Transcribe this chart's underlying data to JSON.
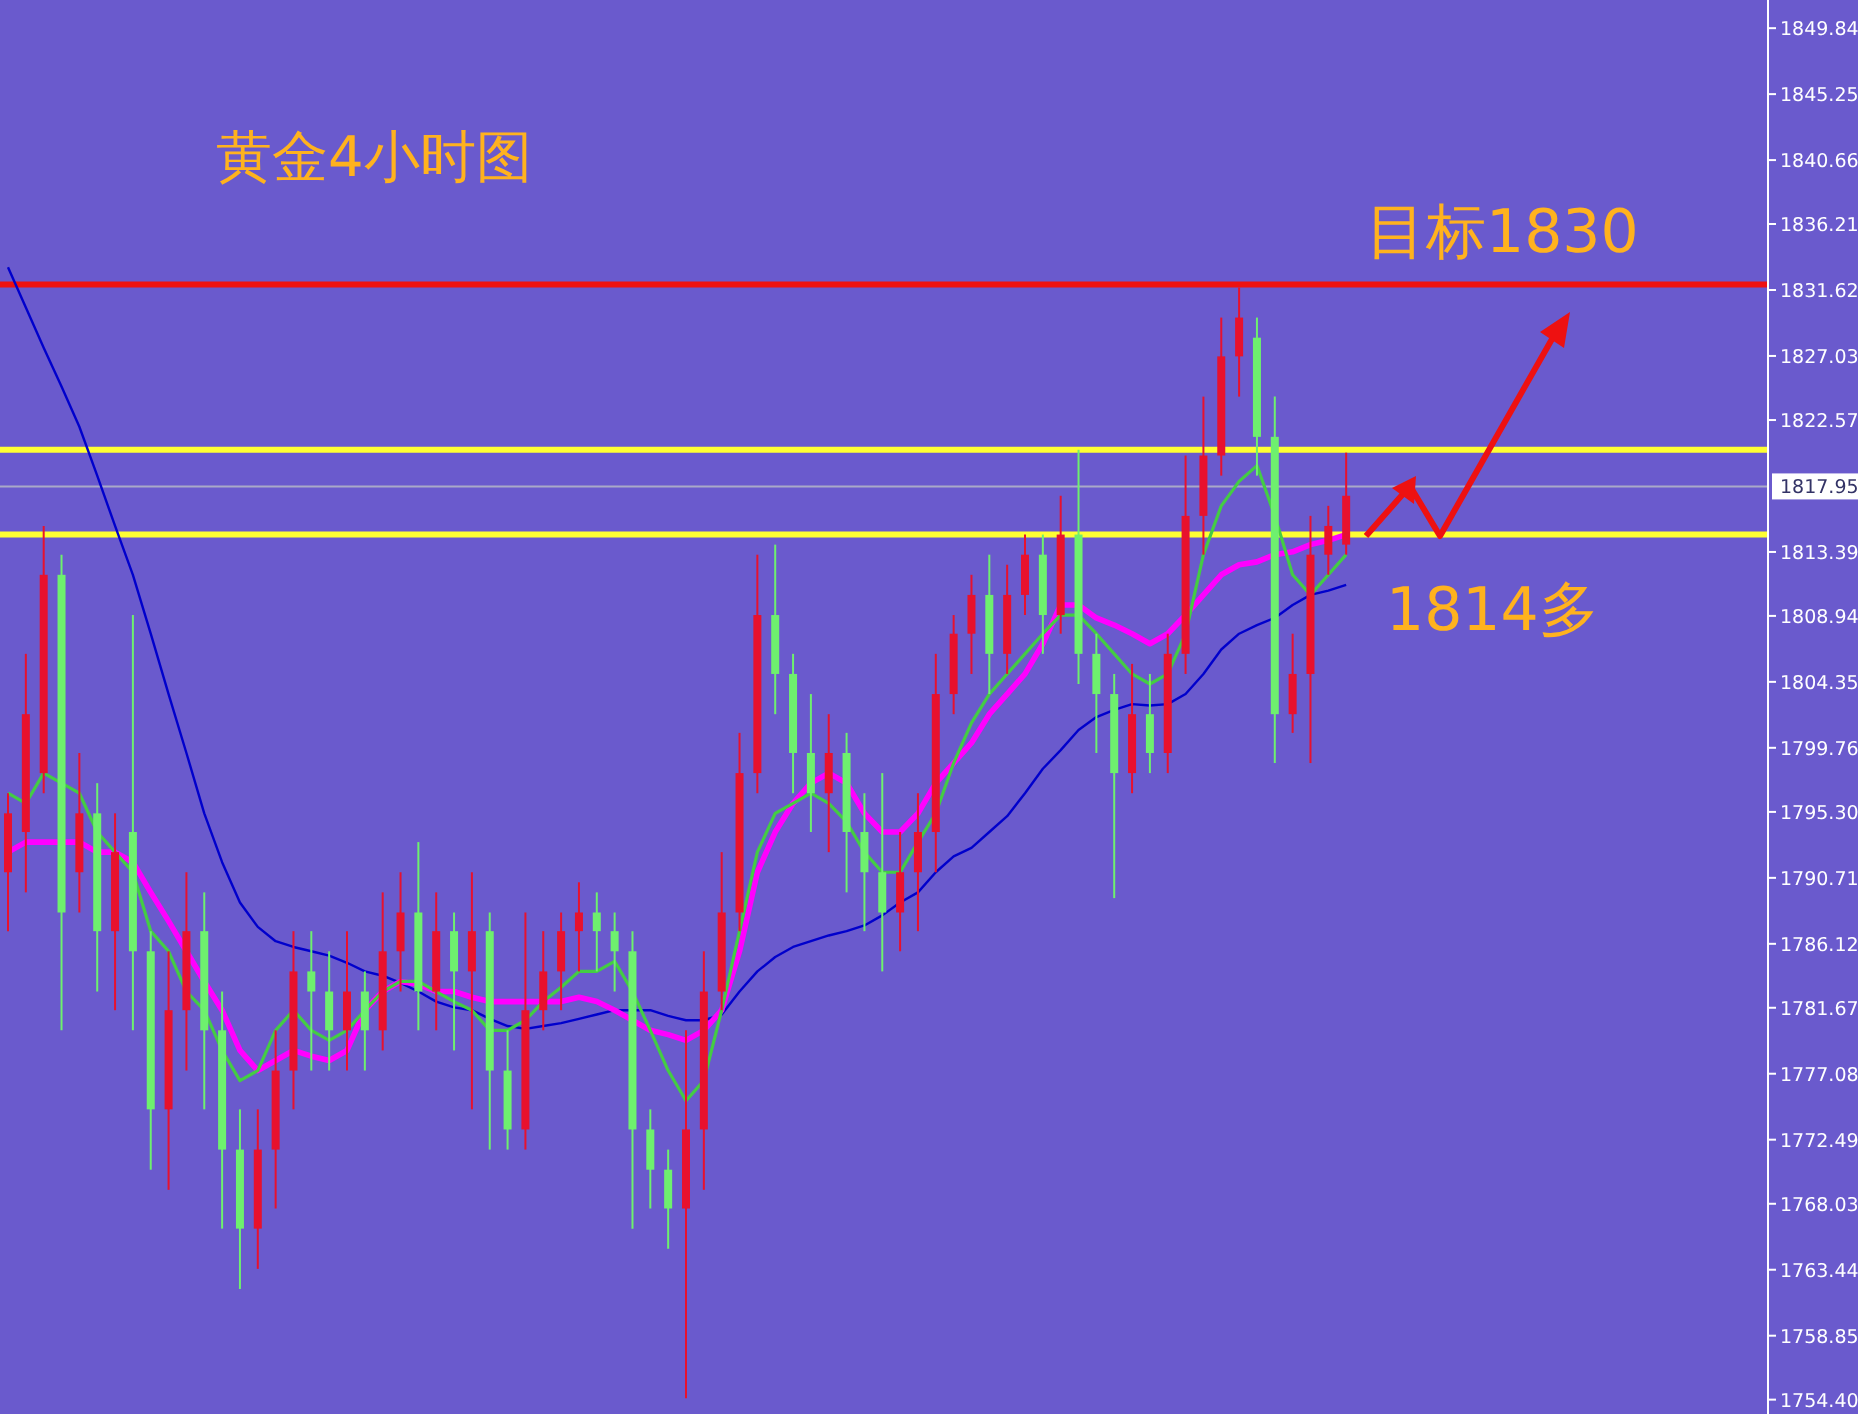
{
  "chart_data": {
    "type": "candlestick",
    "title": "黄金4小时图",
    "categories": [
      null,
      null,
      null,
      null,
      null,
      null,
      null,
      null,
      null,
      null,
      null,
      null,
      null,
      null,
      null,
      null,
      null,
      null,
      null,
      null,
      null,
      null,
      null,
      null,
      null,
      null,
      null,
      null,
      null,
      null,
      null,
      null,
      null,
      null,
      null,
      null,
      null,
      null,
      null,
      null,
      null,
      null,
      null,
      null,
      null,
      null,
      null,
      null,
      null,
      null,
      null,
      null,
      null,
      null,
      null,
      null,
      null,
      null,
      null,
      null,
      null,
      null,
      null,
      null,
      null,
      null,
      null,
      null,
      null,
      null,
      null,
      null,
      null,
      null,
      null,
      null
    ],
    "ohlc": [
      [
        1791.1,
        1796.6,
        1787.0,
        1795.2
      ],
      [
        1793.9,
        1806.3,
        1789.7,
        1802.1
      ],
      [
        1798.0,
        1815.2,
        1796.6,
        1811.8
      ],
      [
        1811.8,
        1813.2,
        1780.1,
        1788.3
      ],
      [
        1791.1,
        1799.4,
        1788.3,
        1795.2
      ],
      [
        1795.2,
        1797.3,
        1782.8,
        1787.0
      ],
      [
        1787.0,
        1795.2,
        1781.5,
        1792.5
      ],
      [
        1793.9,
        1809.0,
        1780.1,
        1785.6
      ],
      [
        1785.6,
        1787.0,
        1770.4,
        1774.6
      ],
      [
        1774.6,
        1785.6,
        1769.0,
        1781.5
      ],
      [
        1781.5,
        1791.1,
        1777.3,
        1787.0
      ],
      [
        1787.0,
        1789.7,
        1774.6,
        1780.1
      ],
      [
        1780.1,
        1782.8,
        1766.3,
        1771.8
      ],
      [
        1771.8,
        1774.6,
        1762.1,
        1766.3
      ],
      [
        1766.3,
        1774.6,
        1763.5,
        1771.8
      ],
      [
        1771.8,
        1780.1,
        1767.7,
        1777.3
      ],
      [
        1777.3,
        1787.0,
        1774.6,
        1784.2
      ],
      [
        1784.2,
        1787.0,
        1777.3,
        1782.8
      ],
      [
        1782.8,
        1785.6,
        1777.3,
        1780.1
      ],
      [
        1780.1,
        1787.0,
        1777.3,
        1782.8
      ],
      [
        1782.8,
        1784.2,
        1777.3,
        1780.1
      ],
      [
        1780.1,
        1789.7,
        1778.7,
        1785.6
      ],
      [
        1785.6,
        1791.1,
        1782.8,
        1788.3
      ],
      [
        1788.3,
        1793.2,
        1780.1,
        1782.8
      ],
      [
        1782.8,
        1789.7,
        1780.1,
        1787.0
      ],
      [
        1787.0,
        1788.3,
        1778.7,
        1784.2
      ],
      [
        1784.2,
        1791.1,
        1774.6,
        1787.0
      ],
      [
        1787.0,
        1788.3,
        1771.8,
        1777.3
      ],
      [
        1777.3,
        1780.1,
        1771.8,
        1773.2
      ],
      [
        1773.2,
        1788.3,
        1771.8,
        1781.5
      ],
      [
        1781.5,
        1787.0,
        1780.1,
        1784.2
      ],
      [
        1784.2,
        1788.3,
        1781.5,
        1787.0
      ],
      [
        1787.0,
        1790.4,
        1784.2,
        1788.3
      ],
      [
        1788.3,
        1789.7,
        1784.2,
        1787.0
      ],
      [
        1787.0,
        1788.3,
        1782.8,
        1785.6
      ],
      [
        1785.6,
        1787.0,
        1766.3,
        1773.2
      ],
      [
        1773.2,
        1774.6,
        1767.7,
        1770.4
      ],
      [
        1770.4,
        1771.8,
        1764.9,
        1767.7
      ],
      [
        1767.7,
        1780.1,
        1754.5,
        1773.2
      ],
      [
        1773.2,
        1785.6,
        1769.0,
        1782.8
      ],
      [
        1782.8,
        1792.5,
        1781.5,
        1788.3
      ],
      [
        1788.3,
        1800.8,
        1787.0,
        1798.0
      ],
      [
        1798.0,
        1813.2,
        1796.6,
        1809.0
      ],
      [
        1809.0,
        1813.9,
        1802.1,
        1804.9
      ],
      [
        1804.9,
        1806.3,
        1796.6,
        1799.4
      ],
      [
        1799.4,
        1803.5,
        1793.9,
        1796.6
      ],
      [
        1796.6,
        1802.1,
        1792.5,
        1799.4
      ],
      [
        1799.4,
        1800.8,
        1789.7,
        1793.9
      ],
      [
        1793.9,
        1796.6,
        1787.0,
        1791.1
      ],
      [
        1791.1,
        1798.0,
        1784.2,
        1788.3
      ],
      [
        1788.3,
        1793.9,
        1785.6,
        1791.1
      ],
      [
        1791.1,
        1796.6,
        1787.0,
        1793.9
      ],
      [
        1793.9,
        1806.3,
        1791.1,
        1803.5
      ],
      [
        1803.5,
        1809.0,
        1802.1,
        1807.7
      ],
      [
        1807.7,
        1811.8,
        1804.9,
        1810.4
      ],
      [
        1810.4,
        1813.2,
        1803.5,
        1806.3
      ],
      [
        1806.3,
        1812.5,
        1804.9,
        1810.4
      ],
      [
        1810.4,
        1814.6,
        1809.0,
        1813.2
      ],
      [
        1813.2,
        1814.6,
        1806.3,
        1809.0
      ],
      [
        1809.0,
        1817.3,
        1807.7,
        1814.6
      ],
      [
        1814.6,
        1820.5,
        1804.2,
        1806.3
      ],
      [
        1806.3,
        1807.7,
        1799.4,
        1803.5
      ],
      [
        1803.5,
        1804.9,
        1789.3,
        1798.0
      ],
      [
        1798.0,
        1805.6,
        1796.6,
        1802.1
      ],
      [
        1802.1,
        1804.9,
        1798.0,
        1799.4
      ],
      [
        1799.4,
        1807.7,
        1798.0,
        1806.3
      ],
      [
        1806.3,
        1820.1,
        1804.9,
        1815.9
      ],
      [
        1815.9,
        1824.2,
        1813.2,
        1820.1
      ],
      [
        1820.1,
        1829.7,
        1818.7,
        1827.0
      ],
      [
        1827.0,
        1831.8,
        1824.2,
        1829.7
      ],
      [
        1828.3,
        1829.7,
        1818.7,
        1821.4
      ],
      [
        1821.4,
        1824.2,
        1798.7,
        1802.1
      ],
      [
        1802.1,
        1807.7,
        1800.8,
        1804.9
      ],
      [
        1804.9,
        1815.9,
        1798.7,
        1813.2
      ],
      [
        1813.2,
        1816.6,
        1811.8,
        1815.2
      ],
      [
        1813.9,
        1820.3,
        1813.2,
        1817.3
      ]
    ],
    "colors": [
      "#e8112d",
      "#e8112d",
      "#e8112d",
      "#6ef06e",
      "#e8112d",
      "#6ef06e",
      "#e8112d",
      "#6ef06e",
      "#6ef06e",
      "#e8112d",
      "#e8112d",
      "#6ef06e",
      "#6ef06e",
      "#6ef06e",
      "#e8112d",
      "#e8112d",
      "#e8112d",
      "#6ef06e",
      "#6ef06e",
      "#e8112d",
      "#6ef06e",
      "#e8112d",
      "#e8112d",
      "#6ef06e",
      "#e8112d",
      "#6ef06e",
      "#e8112d",
      "#6ef06e",
      "#6ef06e",
      "#e8112d",
      "#e8112d",
      "#e8112d",
      "#e8112d",
      "#6ef06e",
      "#6ef06e",
      "#6ef06e",
      "#6ef06e",
      "#6ef06e",
      "#e8112d",
      "#e8112d",
      "#e8112d",
      "#e8112d",
      "#e8112d",
      "#6ef06e",
      "#6ef06e",
      "#6ef06e",
      "#e8112d",
      "#6ef06e",
      "#6ef06e",
      "#6ef06e",
      "#e8112d",
      "#e8112d",
      "#e8112d",
      "#e8112d",
      "#e8112d",
      "#6ef06e",
      "#e8112d",
      "#e8112d",
      "#6ef06e",
      "#e8112d",
      "#6ef06e",
      "#6ef06e",
      "#6ef06e",
      "#e8112d",
      "#6ef06e",
      "#e8112d",
      "#e8112d",
      "#e8112d",
      "#e8112d",
      "#e8112d",
      "#6ef06e",
      "#6ef06e",
      "#e8112d",
      "#e8112d",
      "#e8112d",
      "#e8112d"
    ],
    "series": [
      {
        "type": "line",
        "color": "#0000cc",
        "values": [
          1833.2,
          1830.4,
          1827.6,
          1824.9,
          1822.1,
          1818.7,
          1815.2,
          1811.8,
          1807.7,
          1803.5,
          1799.4,
          1795.2,
          1791.8,
          1789.0,
          1787.3,
          1786.3,
          1785.9,
          1785.6,
          1785.3,
          1784.8,
          1784.2,
          1783.9,
          1783.4,
          1782.8,
          1782.1,
          1781.7,
          1781.5,
          1780.9,
          1780.4,
          1780.2,
          1780.4,
          1780.6,
          1780.9,
          1781.2,
          1781.5,
          1781.5,
          1781.5,
          1781.1,
          1780.8,
          1780.8,
          1781.2,
          1782.8,
          1784.2,
          1785.2,
          1785.9,
          1786.3,
          1786.7,
          1787.0,
          1787.4,
          1788.1,
          1789.0,
          1789.7,
          1791.1,
          1792.2,
          1792.8,
          1793.9,
          1795.0,
          1796.6,
          1798.3,
          1799.6,
          1801.0,
          1801.9,
          1802.4,
          1802.8,
          1802.7,
          1802.8,
          1803.5,
          1804.9,
          1806.6,
          1807.7,
          1808.3,
          1808.8,
          1809.7,
          1810.4,
          1810.7,
          1811.1
        ]
      },
      {
        "type": "line",
        "color": "#ff00ff",
        "values": [
          1792.5,
          1793.2,
          1793.2,
          1793.2,
          1793.2,
          1792.5,
          1792.5,
          1791.8,
          1789.7,
          1787.7,
          1785.6,
          1783.5,
          1781.5,
          1778.7,
          1777.3,
          1778.0,
          1778.7,
          1778.3,
          1778.0,
          1778.7,
          1781.5,
          1782.8,
          1783.5,
          1783.3,
          1782.8,
          1782.8,
          1782.4,
          1782.1,
          1782.1,
          1782.1,
          1782.1,
          1782.1,
          1782.4,
          1782.1,
          1781.5,
          1780.8,
          1780.1,
          1779.8,
          1779.4,
          1780.1,
          1781.5,
          1785.6,
          1791.1,
          1793.9,
          1795.9,
          1797.3,
          1798.0,
          1797.3,
          1795.2,
          1793.9,
          1793.9,
          1795.2,
          1797.3,
          1798.7,
          1800.1,
          1802.1,
          1803.5,
          1804.9,
          1807.0,
          1809.7,
          1809.7,
          1808.8,
          1808.3,
          1807.7,
          1807.0,
          1807.7,
          1809.0,
          1810.4,
          1811.8,
          1812.5,
          1812.7,
          1813.2,
          1813.4,
          1813.9,
          1814.2,
          1814.6
        ]
      },
      {
        "type": "line",
        "color": "#44cc44",
        "values": [
          1796.6,
          1795.9,
          1798.0,
          1797.3,
          1796.6,
          1793.9,
          1792.5,
          1791.1,
          1787.0,
          1785.6,
          1782.8,
          1781.5,
          1778.7,
          1776.6,
          1777.3,
          1780.1,
          1781.5,
          1780.1,
          1779.4,
          1780.1,
          1781.5,
          1782.8,
          1783.5,
          1783.5,
          1782.8,
          1782.1,
          1781.5,
          1780.1,
          1780.1,
          1780.8,
          1782.1,
          1783.1,
          1784.2,
          1784.2,
          1784.9,
          1782.8,
          1780.1,
          1777.3,
          1775.2,
          1776.6,
          1781.5,
          1787.0,
          1792.5,
          1795.2,
          1795.9,
          1796.6,
          1795.9,
          1794.6,
          1792.5,
          1791.1,
          1791.1,
          1793.2,
          1795.2,
          1798.7,
          1801.5,
          1803.5,
          1804.9,
          1806.3,
          1807.7,
          1809.0,
          1809.0,
          1807.7,
          1806.3,
          1804.9,
          1804.2,
          1804.9,
          1807.7,
          1813.2,
          1816.6,
          1818.3,
          1819.4,
          1815.9,
          1811.8,
          1810.4,
          1811.8,
          1813.2
        ]
      }
    ],
    "ylim": [
      1753.4,
      1851.8
    ],
    "yticks": [
      1849.84,
      1845.25,
      1840.66,
      1836.21,
      1831.62,
      1827.03,
      1822.57,
      1813.39,
      1808.94,
      1804.35,
      1799.76,
      {
        "value": 1795.3,
        "label": "1795.30"
      },
      1790.71,
      1786.12,
      1781.67,
      1777.08,
      1772.49,
      1768.03,
      1763.44,
      1758.85,
      {
        "value": 1754.4,
        "label": "1754.40"
      }
    ],
    "tick_labels": "y",
    "ref_lines": [
      {
        "axis": "y",
        "value": 1832.0,
        "color": "#ee1111"
      },
      {
        "axis": "y",
        "value": 1820.5,
        "color": "#ffff33"
      },
      {
        "axis": "y",
        "value": 1814.6,
        "color": "#ffff33"
      },
      {
        "axis": "y",
        "value": 1817.95,
        "label": "1817.95",
        "color": "#a9a9c8"
      }
    ],
    "annotations": [
      "目标1830",
      "1814多"
    ]
  }
}
